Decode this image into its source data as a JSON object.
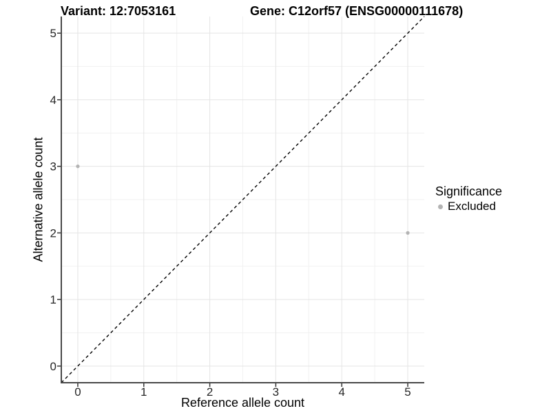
{
  "chart_data": {
    "type": "scatter",
    "titles": {
      "left": "Variant: 12:7053161",
      "right": "Gene: C12orf57 (ENSG00000111678)"
    },
    "xlabel": "Reference allele count",
    "ylabel": "Alternative allele count",
    "xlim": [
      -0.25,
      5.25
    ],
    "ylim": [
      -0.25,
      5.25
    ],
    "x_ticks": [
      0,
      1,
      2,
      3,
      4,
      5
    ],
    "y_ticks": [
      0,
      1,
      2,
      3,
      4,
      5
    ],
    "x_minor_ticks": [
      0.5,
      1.5,
      2.5,
      3.5,
      4.5
    ],
    "y_minor_ticks": [
      0.5,
      1.5,
      2.5,
      3.5,
      4.5
    ],
    "grid": "major+minor",
    "legend": {
      "position": "right",
      "title": "Significance",
      "entries": [
        {
          "label": "Excluded",
          "color": "#b3b3b3"
        }
      ]
    },
    "series": [
      {
        "name": "Excluded",
        "color": "#b3b3b3",
        "marker_radius_px": 2.6,
        "points": [
          {
            "x": 0,
            "y": 3
          },
          {
            "x": 5,
            "y": 2
          }
        ]
      }
    ],
    "reference_line": {
      "type": "identity",
      "style": "dashed",
      "color": "#000000",
      "from": [
        -0.25,
        -0.25
      ],
      "to": [
        5.25,
        5.25
      ]
    },
    "colors": {
      "panel_background": "#ffffff",
      "grid_major": "#e4e4e4",
      "grid_minor": "#f1f1f1",
      "axis_line": "#474747",
      "tick_mark": "#333333",
      "tick_label": "#262626"
    }
  }
}
